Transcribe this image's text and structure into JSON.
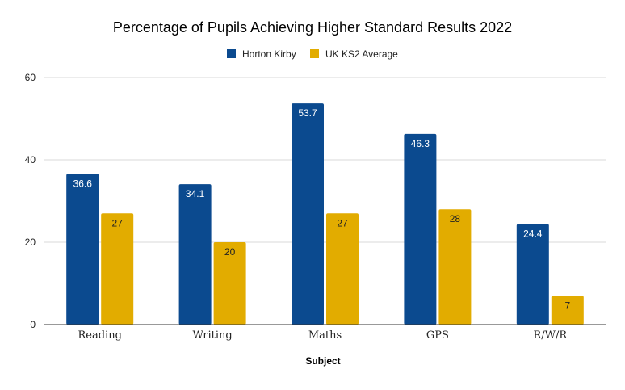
{
  "chart_data": {
    "type": "bar",
    "title": "Percentage of Pupils Achieving Higher Standard Results 2022",
    "xlabel": "Subject",
    "ylabel": "",
    "categories": [
      "Reading",
      "Writing",
      "Maths",
      "GPS",
      "R/W/R"
    ],
    "series": [
      {
        "name": "Horton Kirby",
        "values": [
          36.6,
          34.1,
          53.7,
          46.3,
          24.4
        ],
        "color": "#0B4A8F",
        "label_color": "#ffffff"
      },
      {
        "name": "UK KS2 Average",
        "values": [
          27,
          20,
          27,
          28,
          7
        ],
        "color": "#E2AC00",
        "label_color": "#222222"
      }
    ],
    "ylim": [
      0,
      60
    ],
    "yticks": [
      0,
      20,
      40,
      60
    ],
    "grid": true,
    "legend_position": "top-center"
  }
}
